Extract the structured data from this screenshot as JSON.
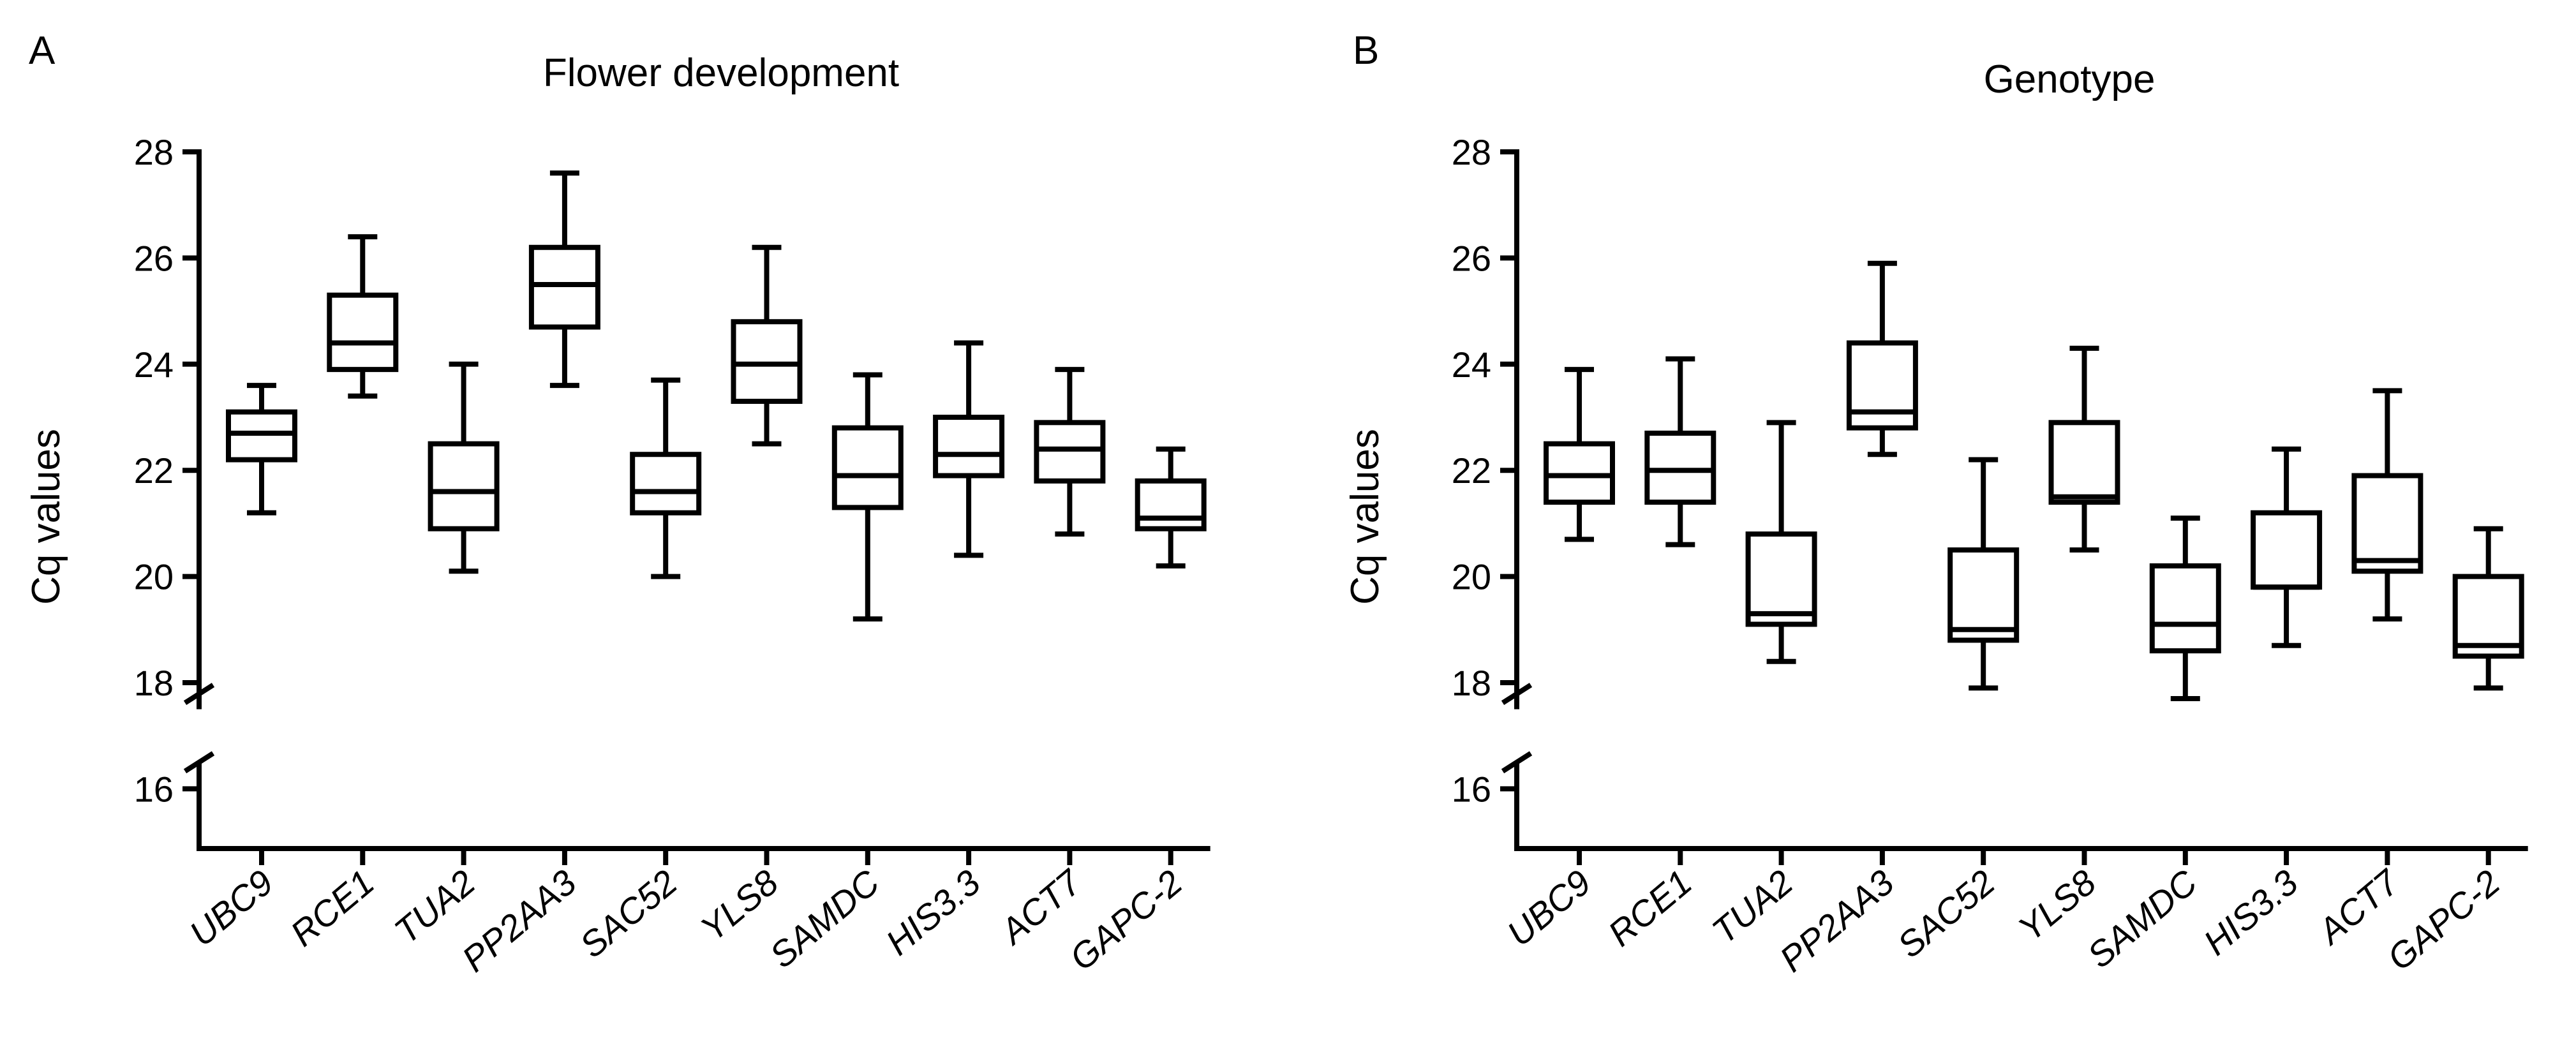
{
  "chart_data": [
    {
      "type": "box",
      "panel_label": "A",
      "title": "Flower development",
      "ylabel": "Cq values",
      "xlabel": "",
      "ylim": [
        15,
        28
      ],
      "yticks": [
        16,
        18,
        20,
        22,
        24,
        26,
        28
      ],
      "y_axis_break": [
        16.5,
        17.5
      ],
      "grid": false,
      "categories": [
        "UBC9",
        "RCE1",
        "TUA2",
        "PP2AA3",
        "SAC52",
        "YLS8",
        "SAMDC",
        "HIS3.3",
        "ACT7",
        "GAPC-2"
      ],
      "boxes": [
        {
          "min": 21.2,
          "q1": 22.2,
          "median": 22.7,
          "q3": 23.1,
          "max": 23.6
        },
        {
          "min": 23.4,
          "q1": 23.9,
          "median": 24.4,
          "q3": 25.3,
          "max": 26.4
        },
        {
          "min": 20.1,
          "q1": 20.9,
          "median": 21.6,
          "q3": 22.5,
          "max": 24.0
        },
        {
          "min": 23.6,
          "q1": 24.7,
          "median": 25.5,
          "q3": 26.2,
          "max": 27.6
        },
        {
          "min": 20.0,
          "q1": 21.2,
          "median": 21.6,
          "q3": 22.3,
          "max": 23.7
        },
        {
          "min": 22.5,
          "q1": 23.3,
          "median": 24.0,
          "q3": 24.8,
          "max": 26.2
        },
        {
          "min": 19.2,
          "q1": 21.3,
          "median": 21.9,
          "q3": 22.8,
          "max": 23.8
        },
        {
          "min": 20.4,
          "q1": 21.9,
          "median": 22.3,
          "q3": 23.0,
          "max": 24.4
        },
        {
          "min": 20.8,
          "q1": 21.8,
          "median": 22.4,
          "q3": 22.9,
          "max": 23.9
        },
        {
          "min": 20.2,
          "q1": 20.9,
          "median": 21.1,
          "q3": 21.8,
          "max": 22.4
        }
      ]
    },
    {
      "type": "box",
      "panel_label": "B",
      "title": "Genotype",
      "ylabel": "Cq values",
      "xlabel": "",
      "ylim": [
        15,
        28
      ],
      "yticks": [
        16,
        18,
        20,
        22,
        24,
        26,
        28
      ],
      "y_axis_break": [
        16.5,
        17.5
      ],
      "grid": false,
      "categories": [
        "UBC9",
        "RCE1",
        "TUA2",
        "PP2AA3",
        "SAC52",
        "YLS8",
        "SAMDC",
        "HIS3.3",
        "ACT7",
        "GAPC-2"
      ],
      "boxes": [
        {
          "min": 20.7,
          "q1": 21.4,
          "median": 21.9,
          "q3": 22.5,
          "max": 23.9
        },
        {
          "min": 20.6,
          "q1": 21.4,
          "median": 22.0,
          "q3": 22.7,
          "max": 24.1
        },
        {
          "min": 18.4,
          "q1": 19.1,
          "median": 19.3,
          "q3": 20.8,
          "max": 22.9
        },
        {
          "min": 22.3,
          "q1": 22.8,
          "median": 23.1,
          "q3": 24.4,
          "max": 25.9
        },
        {
          "min": 17.9,
          "q1": 18.8,
          "median": 19.0,
          "q3": 20.5,
          "max": 22.2
        },
        {
          "min": 20.5,
          "q1": 21.4,
          "median": 21.5,
          "q3": 22.9,
          "max": 24.3
        },
        {
          "min": 17.7,
          "q1": 18.6,
          "median": 19.1,
          "q3": 20.2,
          "max": 21.1
        },
        {
          "min": 18.7,
          "q1": 19.8,
          "median": 19.8,
          "q3": 21.2,
          "max": 22.4
        },
        {
          "min": 19.2,
          "q1": 20.1,
          "median": 20.3,
          "q3": 21.9,
          "max": 23.5
        },
        {
          "min": 17.9,
          "q1": 18.5,
          "median": 18.7,
          "q3": 20.0,
          "max": 20.9
        }
      ]
    }
  ]
}
